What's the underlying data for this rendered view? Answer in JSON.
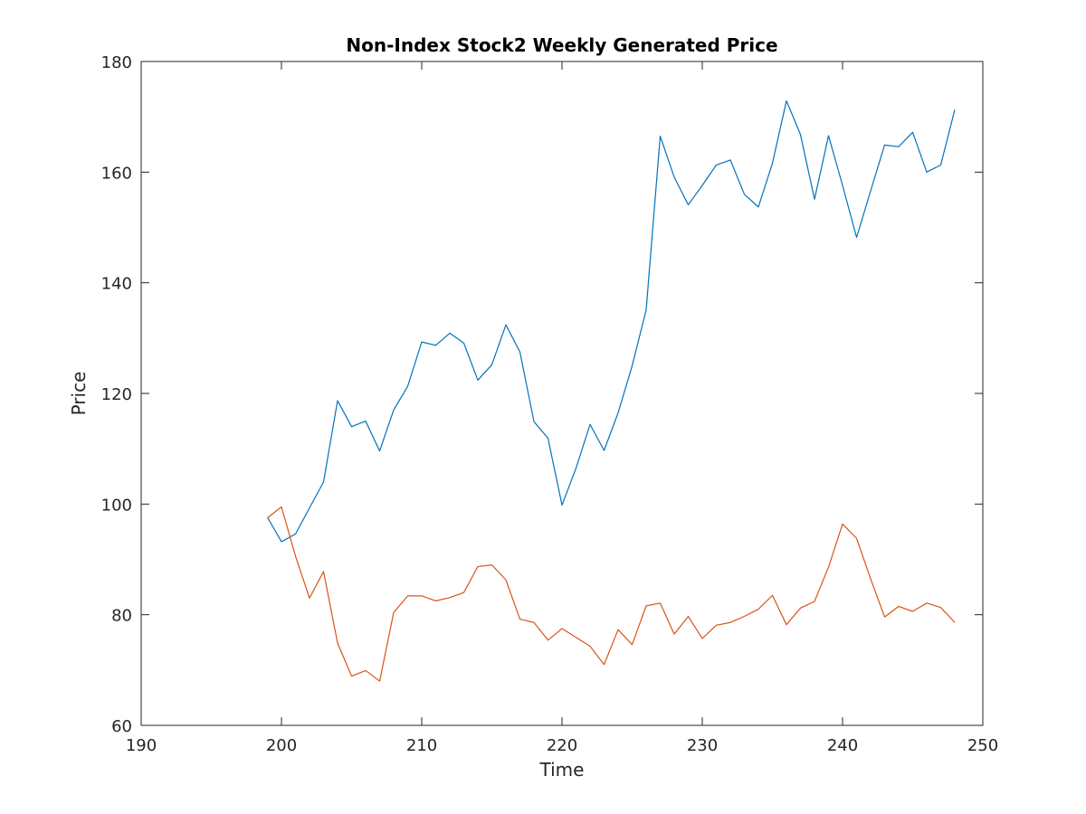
{
  "chart_data": {
    "type": "line",
    "title": "Non-Index Stock2 Weekly Generated Price",
    "xlabel": "Time",
    "ylabel": "Price",
    "xlim": [
      190,
      250
    ],
    "ylim": [
      60,
      180
    ],
    "xticks": [
      "190",
      "200",
      "210",
      "220",
      "230",
      "240",
      "250"
    ],
    "yticks": [
      "60",
      "80",
      "100",
      "120",
      "140",
      "160",
      "180"
    ],
    "grid": false,
    "legend": false,
    "x": [
      199,
      200,
      201,
      202,
      203,
      204,
      205,
      206,
      207,
      208,
      209,
      210,
      211,
      212,
      213,
      214,
      215,
      216,
      217,
      218,
      219,
      220,
      221,
      222,
      223,
      224,
      225,
      226,
      227,
      228,
      229,
      230,
      231,
      232,
      233,
      234,
      235,
      236,
      237,
      238,
      239,
      240,
      241,
      242,
      243,
      244,
      245,
      246,
      247,
      248
    ],
    "series": [
      {
        "color": "#0072BD",
        "values": [
          97.6,
          93.2,
          94.6,
          99.3,
          104.0,
          118.7,
          114.0,
          115.0,
          109.6,
          117.0,
          121.3,
          129.3,
          128.7,
          130.9,
          129.1,
          122.4,
          125.2,
          132.4,
          127.5,
          114.9,
          111.9,
          99.8,
          106.5,
          114.4,
          109.7,
          116.5,
          125.0,
          135.1,
          166.5,
          159.1,
          154.1,
          157.6,
          161.3,
          162.2,
          156.0,
          153.7,
          161.6,
          172.9,
          166.8,
          155.1,
          166.6,
          157.6,
          148.2,
          156.6,
          164.9,
          164.6,
          167.2,
          160.0,
          161.3,
          171.3
        ]
      },
      {
        "color": "#D95319",
        "values": [
          97.5,
          99.5,
          90.6,
          83.0,
          87.8,
          74.9,
          68.9,
          69.9,
          68.0,
          80.4,
          83.4,
          83.4,
          82.5,
          83.1,
          84.0,
          88.7,
          89.0,
          86.3,
          79.2,
          78.6,
          75.4,
          77.5,
          75.9,
          74.3,
          71.0,
          77.3,
          74.6,
          81.6,
          82.1,
          76.5,
          79.7,
          75.7,
          78.1,
          78.6,
          79.7,
          81.0,
          83.5,
          78.2,
          81.2,
          82.4,
          88.6,
          96.4,
          93.8,
          86.5,
          79.6,
          81.5,
          80.6,
          82.1,
          81.3,
          78.6
        ]
      }
    ]
  }
}
